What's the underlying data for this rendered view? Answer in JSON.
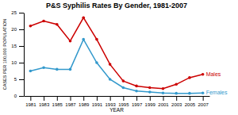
{
  "chart_data": {
    "type": "line",
    "title": "P&S Syphilis Rates By Gender, 1981-2007",
    "xlabel": "YEAR",
    "ylabel": "CASES PER 100,000 POPULATION",
    "x": [
      1981,
      1983,
      1985,
      1987,
      1989,
      1991,
      1993,
      1995,
      1997,
      1999,
      2001,
      2003,
      2005,
      2007
    ],
    "series": [
      {
        "name": "Males",
        "color": "#cc0000",
        "marker": "circle",
        "values": [
          21.0,
          22.5,
          21.5,
          16.5,
          23.5,
          17.0,
          9.5,
          4.5,
          3.0,
          2.5,
          2.2,
          3.5,
          5.5,
          6.5
        ]
      },
      {
        "name": "Females",
        "color": "#3399cc",
        "marker": "circle",
        "values": [
          7.5,
          8.5,
          8.0,
          8.0,
          17.0,
          10.0,
          5.0,
          2.5,
          1.5,
          1.2,
          0.9,
          0.8,
          0.8,
          0.9
        ]
      }
    ],
    "xlim": [
      1980,
      2008
    ],
    "xticks": [
      1981,
      1983,
      1985,
      1987,
      1989,
      1991,
      1993,
      1995,
      1997,
      1999,
      2001,
      2003,
      2005,
      2007
    ],
    "ylim": [
      0,
      25
    ],
    "yticks": [
      0,
      5,
      10,
      15,
      20,
      25
    ],
    "grid": false
  }
}
